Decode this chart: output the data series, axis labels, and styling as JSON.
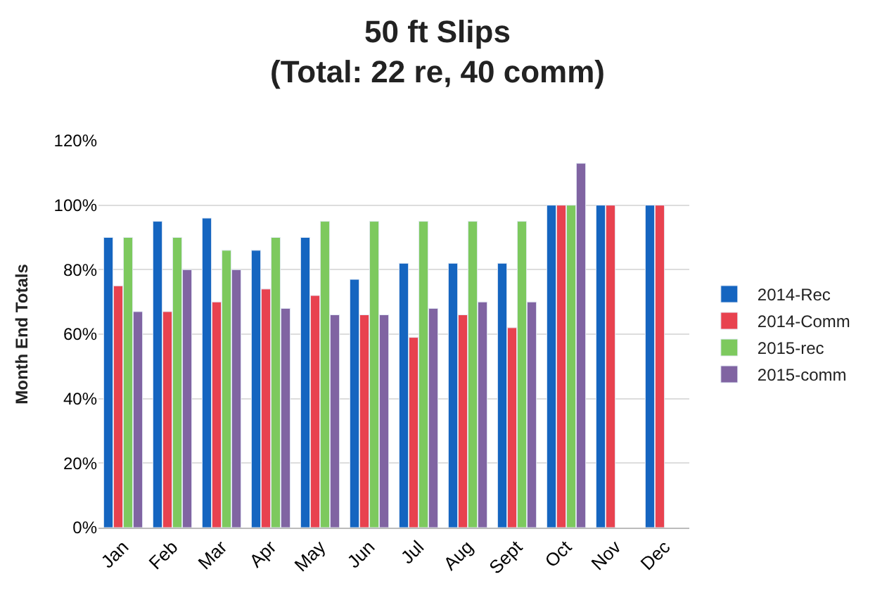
{
  "chart_data": {
    "type": "bar",
    "title": "50 ft Slips\n(Total: 22 re, 40 comm)",
    "ylabel": "Month End Totals",
    "categories": [
      "Jan",
      "Feb",
      "Mar",
      "Apr",
      "May",
      "Jun",
      "Jul",
      "Aug",
      "Sept",
      "Oct",
      "Nov",
      "Dec"
    ],
    "series": [
      {
        "name": "2014-Rec",
        "color": "#1565c0",
        "values": [
          90,
          95,
          96,
          86,
          90,
          77,
          82,
          82,
          82,
          100,
          100,
          100
        ]
      },
      {
        "name": "2014-Comm",
        "color": "#e8424f",
        "values": [
          75,
          67,
          70,
          74,
          72,
          66,
          59,
          66,
          62,
          100,
          100,
          100
        ]
      },
      {
        "name": "2015-rec",
        "color": "#7dc95e",
        "values": [
          90,
          90,
          86,
          90,
          95,
          95,
          95,
          95,
          95,
          100,
          null,
          null
        ]
      },
      {
        "name": "2015-comm",
        "color": "#8064a2",
        "values": [
          67,
          80,
          80,
          68,
          66,
          66,
          68,
          70,
          70,
          113,
          null,
          null
        ]
      }
    ],
    "ylim": [
      0,
      120
    ],
    "yticks": [
      {
        "value": 0,
        "label": "0%"
      },
      {
        "value": 20,
        "label": "20%"
      },
      {
        "value": 40,
        "label": "40%"
      },
      {
        "value": 60,
        "label": "60%"
      },
      {
        "value": 80,
        "label": "80%"
      },
      {
        "value": 100,
        "label": "100%"
      },
      {
        "value": 120,
        "label": "120%"
      }
    ],
    "grid": "y",
    "legend": "right"
  }
}
